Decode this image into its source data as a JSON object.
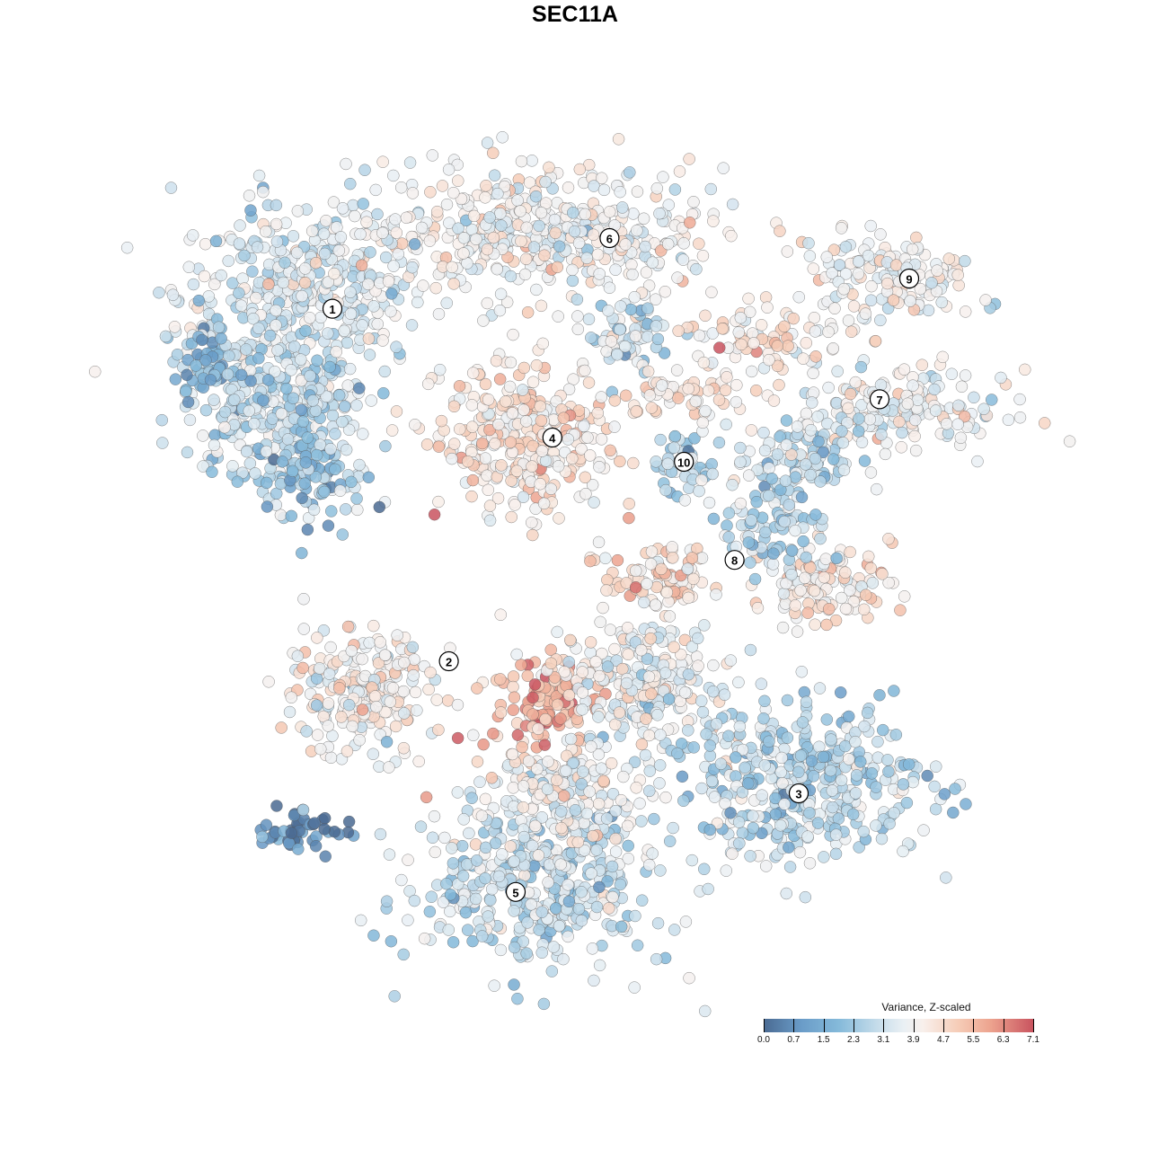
{
  "chart_data": {
    "type": "scatter",
    "title": "SEC11A",
    "xlabel": "",
    "ylabel": "",
    "xlim": [
      -40,
      40
    ],
    "ylim": [
      -40,
      40
    ],
    "grid": false,
    "legend": {
      "title": "Variance, Z-scaled",
      "placement": "bottom-right",
      "ticks": [
        "0.0",
        "0.7",
        "1.5",
        "2.3",
        "3.1",
        "3.9",
        "4.7",
        "5.5",
        "6.3",
        "7.1"
      ],
      "range": [
        0,
        7.1
      ],
      "colors": [
        "#4a6a92",
        "#6a9cc8",
        "#85bada",
        "#c5dcea",
        "#eaf0f4",
        "#f8f0ec",
        "#f6cdb8",
        "#eda48f",
        "#c9545f"
      ]
    },
    "cluster_labels": [
      {
        "label": "1",
        "x": -22.5,
        "y": 24.7
      },
      {
        "label": "2",
        "x": -11.7,
        "y": -8.0
      },
      {
        "label": "3",
        "x": 20.75,
        "y": -20.25
      },
      {
        "label": "4",
        "x": -2.1,
        "y": 12.75
      },
      {
        "label": "5",
        "x": -5.5,
        "y": -29.4
      },
      {
        "label": "6",
        "x": 3.2,
        "y": 31.25
      },
      {
        "label": "7",
        "x": 28.25,
        "y": 16.3
      },
      {
        "label": "8",
        "x": 14.8,
        "y": 1.4
      },
      {
        "label": "9",
        "x": 31.0,
        "y": 27.5
      },
      {
        "label": "10",
        "x": 10.1,
        "y": 10.5
      }
    ],
    "point_groups": [
      {
        "cluster": "1",
        "cx": -25.8,
        "cy": 25.8,
        "sx": 9.2,
        "sy": 7.5,
        "n": 400,
        "mean": 3.2
      },
      {
        "cluster": "1",
        "cx": -28.3,
        "cy": 15.8,
        "sx": 6.7,
        "sy": 5.0,
        "n": 250,
        "mean": 2.6
      },
      {
        "cluster": "1",
        "cx": -24.2,
        "cy": 9.2,
        "sx": 4.2,
        "sy": 3.8,
        "n": 120,
        "mean": 2.2
      },
      {
        "cluster": "1",
        "cx": -34.2,
        "cy": 20.0,
        "sx": 2.0,
        "sy": 3.3,
        "n": 60,
        "mean": 1.6
      },
      {
        "cluster": "6",
        "cx": -3.3,
        "cy": 31.7,
        "sx": 14.2,
        "sy": 5.0,
        "n": 450,
        "mean": 3.9
      },
      {
        "cluster": "6",
        "cx": 5.0,
        "cy": 22.5,
        "sx": 3.3,
        "sy": 3.3,
        "n": 70,
        "mean": 3.0
      },
      {
        "cluster": "4",
        "cx": -4.6,
        "cy": 12.5,
        "sx": 6.7,
        "sy": 5.8,
        "n": 300,
        "mean": 4.6
      },
      {
        "cluster": "10",
        "cx": 10.0,
        "cy": 10.4,
        "sx": 2.1,
        "sy": 2.9,
        "n": 50,
        "mean": 2.6
      },
      {
        "cluster": "9",
        "cx": 29.2,
        "cy": 27.5,
        "sx": 6.7,
        "sy": 3.3,
        "n": 150,
        "mean": 3.8
      },
      {
        "cluster": "7",
        "cx": 17.5,
        "cy": 21.7,
        "sx": 6.7,
        "sy": 2.5,
        "n": 80,
        "mean": 4.6
      },
      {
        "cluster": "7",
        "cx": 10.0,
        "cy": 16.7,
        "sx": 5.0,
        "sy": 1.7,
        "n": 60,
        "mean": 4.5
      },
      {
        "cluster": "7",
        "cx": 30.0,
        "cy": 15.4,
        "sx": 8.3,
        "sy": 2.9,
        "n": 180,
        "mean": 3.7
      },
      {
        "cluster": "7",
        "cx": 20.8,
        "cy": 10.8,
        "sx": 5.0,
        "sy": 3.3,
        "n": 110,
        "mean": 2.8
      },
      {
        "cluster": "8",
        "cx": 7.5,
        "cy": -0.4,
        "sx": 4.2,
        "sy": 2.5,
        "n": 90,
        "mean": 4.8
      },
      {
        "cluster": "8",
        "cx": 23.3,
        "cy": -0.8,
        "sx": 5.0,
        "sy": 2.9,
        "n": 120,
        "mean": 4.5
      },
      {
        "cluster": "8",
        "cx": 18.3,
        "cy": 5.0,
        "sx": 4.2,
        "sy": 3.3,
        "n": 80,
        "mean": 2.5
      },
      {
        "cluster": "2",
        "cx": -20.0,
        "cy": -10.8,
        "sx": 5.8,
        "sy": 5.0,
        "n": 220,
        "mean": 4.0
      },
      {
        "cluster": "2",
        "cx": -2.5,
        "cy": -11.7,
        "sx": 4.2,
        "sy": 3.8,
        "n": 120,
        "mean": 5.9
      },
      {
        "cluster": "3",
        "cx": 6.7,
        "cy": -10.0,
        "sx": 6.7,
        "sy": 5.0,
        "n": 250,
        "mean": 3.7
      },
      {
        "cluster": "3",
        "cx": 20.8,
        "cy": -19.2,
        "sx": 10.0,
        "sy": 5.8,
        "n": 400,
        "mean": 2.6
      },
      {
        "cluster": "5",
        "cx": -3.3,
        "cy": -28.3,
        "sx": 10.0,
        "sy": 6.7,
        "n": 450,
        "mean": 2.9
      },
      {
        "cluster": "5",
        "cx": -1.7,
        "cy": -20.0,
        "sx": 5.8,
        "sy": 3.3,
        "n": 150,
        "mean": 3.9
      },
      {
        "cluster": "other",
        "cx": -25.0,
        "cy": -23.75,
        "sx": 3.8,
        "sy": 1.7,
        "n": 50,
        "mean": 0.5
      }
    ]
  }
}
